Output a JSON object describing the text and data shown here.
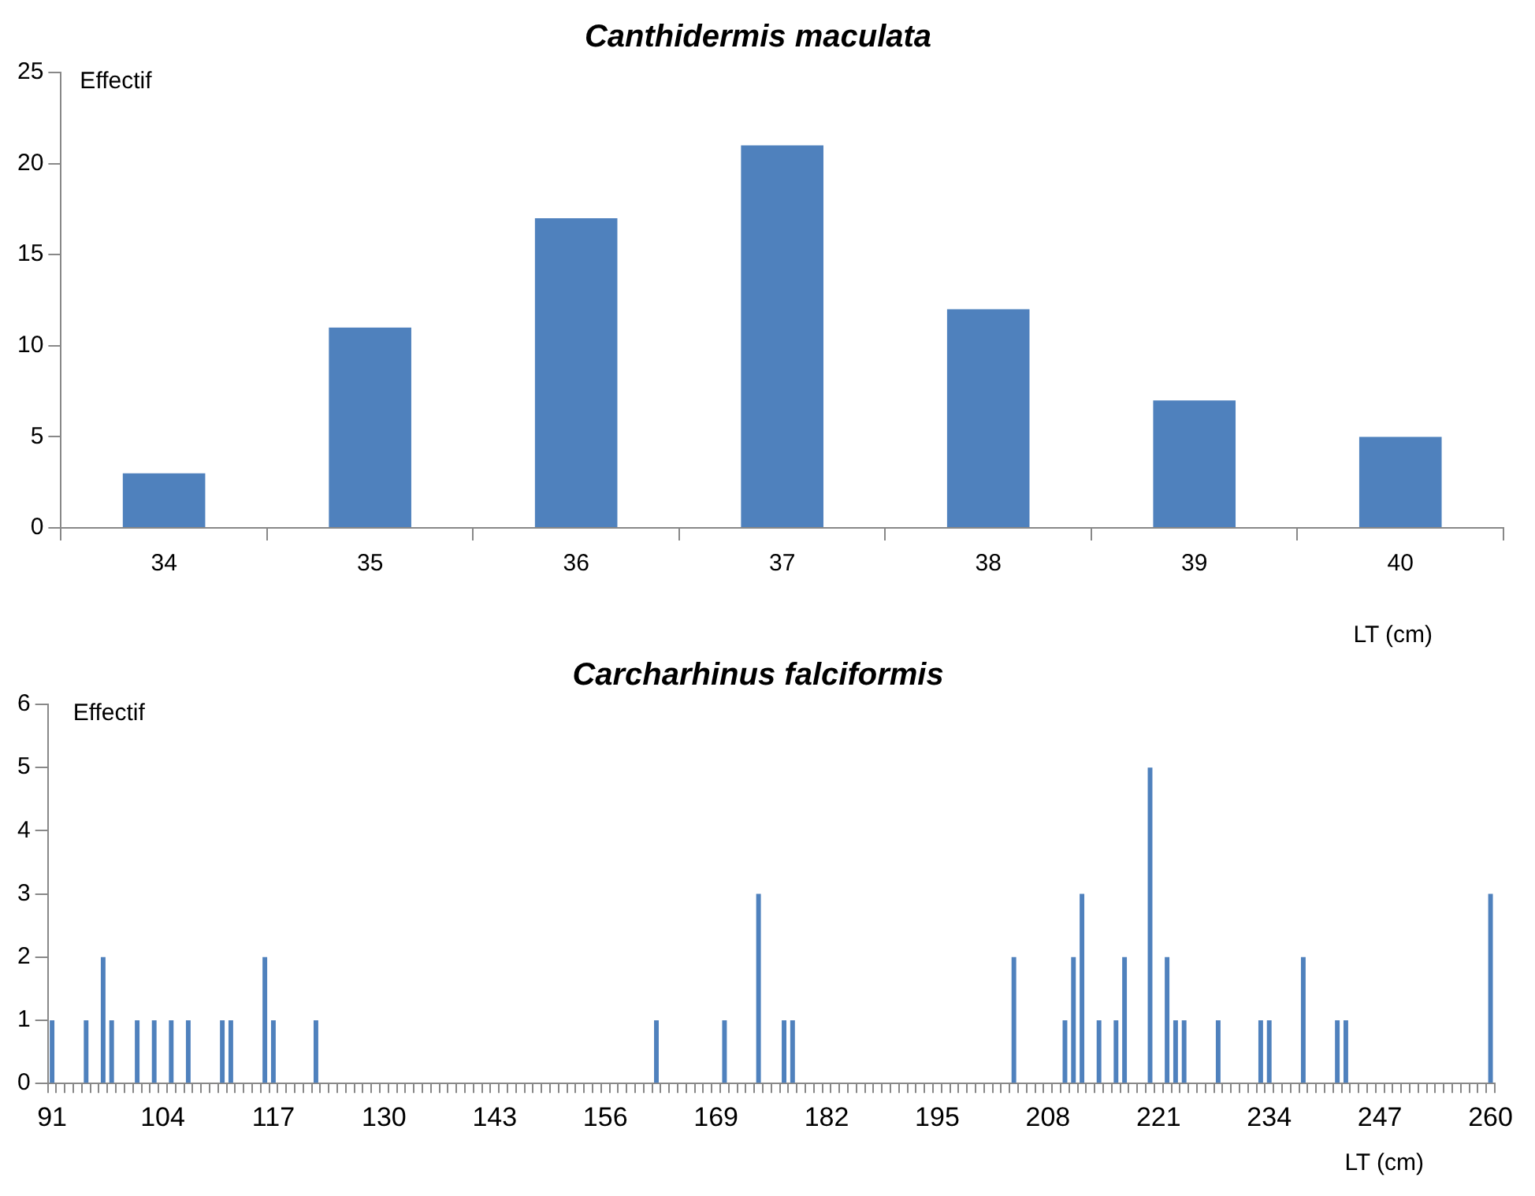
{
  "chart_data": [
    {
      "type": "bar",
      "title": "Canthidermis maculata",
      "ylabel": "Effectif",
      "xlabel": "LT (cm)",
      "categories": [
        "34",
        "35",
        "36",
        "37",
        "38",
        "39",
        "40"
      ],
      "values": [
        3,
        11,
        17,
        21,
        12,
        7,
        5
      ],
      "color": "#4f81bd",
      "ylim": [
        0,
        25
      ],
      "yticks": [
        0,
        5,
        10,
        15,
        20,
        25
      ],
      "grid": false,
      "legend": false
    },
    {
      "type": "bar",
      "title": "Carcharhinus falciformis",
      "ylabel": "Effectif",
      "xlabel": "LT (cm)",
      "categories": [
        "91",
        null,
        null,
        null,
        null,
        null,
        null,
        null,
        null,
        null,
        null,
        null,
        null,
        "104",
        null,
        null,
        null,
        null,
        null,
        null,
        null,
        null,
        null,
        null,
        null,
        null,
        "117",
        null,
        null,
        null,
        null,
        null,
        null,
        null,
        null,
        null,
        null,
        null,
        null,
        "130",
        null,
        null,
        null,
        null,
        null,
        null,
        null,
        null,
        null,
        null,
        null,
        null,
        "143",
        null,
        null,
        null,
        null,
        null,
        null,
        null,
        null,
        null,
        null,
        null,
        null,
        "156",
        null,
        null,
        null,
        null,
        null,
        null,
        null,
        null,
        null,
        null,
        null,
        null,
        "169",
        null,
        null,
        null,
        null,
        null,
        null,
        null,
        null,
        null,
        null,
        null,
        null,
        "182",
        null,
        null,
        null,
        null,
        null,
        null,
        null,
        null,
        null,
        null,
        null,
        null,
        "195",
        null,
        null,
        null,
        null,
        null,
        null,
        null,
        null,
        null,
        null,
        null,
        null,
        "208",
        null,
        null,
        null,
        null,
        null,
        null,
        null,
        null,
        null,
        null,
        null,
        null,
        "221",
        null,
        null,
        null,
        null,
        null,
        null,
        null,
        null,
        null,
        null,
        null,
        null,
        "234",
        null,
        null,
        null,
        null,
        null,
        null,
        null,
        null,
        null,
        null,
        null,
        null,
        "247",
        null,
        null,
        null,
        null,
        null,
        null,
        null,
        null,
        null,
        null,
        null,
        null,
        "260"
      ],
      "values": [
        1,
        0,
        0,
        0,
        1,
        0,
        2,
        1,
        0,
        0,
        1,
        0,
        1,
        0,
        1,
        0,
        1,
        0,
        0,
        0,
        1,
        1,
        0,
        0,
        0,
        2,
        1,
        0,
        0,
        0,
        0,
        1,
        0,
        0,
        0,
        0,
        0,
        0,
        0,
        0,
        0,
        0,
        0,
        0,
        0,
        0,
        0,
        0,
        0,
        0,
        0,
        0,
        0,
        0,
        0,
        0,
        0,
        0,
        0,
        0,
        0,
        0,
        0,
        0,
        0,
        0,
        0,
        0,
        0,
        0,
        0,
        1,
        0,
        0,
        0,
        0,
        0,
        0,
        0,
        1,
        0,
        0,
        0,
        3,
        0,
        0,
        1,
        1,
        0,
        0,
        0,
        0,
        0,
        0,
        0,
        0,
        0,
        0,
        0,
        0,
        0,
        0,
        0,
        0,
        0,
        0,
        0,
        0,
        0,
        0,
        0,
        0,
        0,
        2,
        0,
        0,
        0,
        0,
        0,
        1,
        2,
        3,
        0,
        1,
        0,
        1,
        2,
        0,
        0,
        5,
        0,
        2,
        1,
        1,
        0,
        0,
        0,
        1,
        0,
        0,
        0,
        0,
        1,
        1,
        0,
        0,
        0,
        2,
        0,
        0,
        0,
        1,
        1,
        0,
        0,
        0,
        0,
        0,
        0,
        0,
        0,
        0,
        0,
        0,
        0,
        0,
        0,
        0,
        0,
        3
      ],
      "color": "#4f81bd",
      "ylim": [
        0,
        6
      ],
      "yticks": [
        0,
        1,
        2,
        3,
        4,
        5,
        6
      ],
      "grid": false,
      "legend": false
    }
  ]
}
